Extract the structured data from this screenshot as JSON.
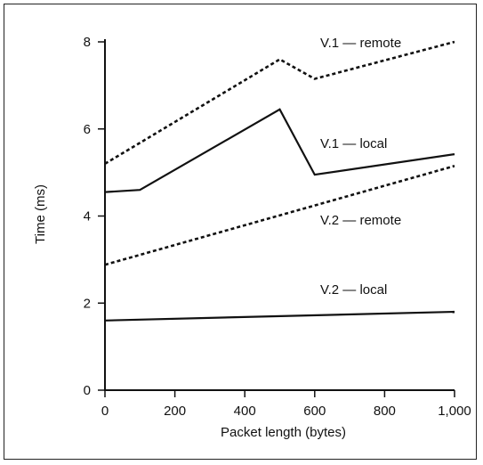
{
  "chart_data": {
    "type": "line",
    "title": "",
    "xlabel": "Packet length (bytes)",
    "ylabel": "Time (ms)",
    "xlim": [
      0,
      1000
    ],
    "ylim": [
      0,
      8
    ],
    "x_ticks": [
      0,
      200,
      400,
      600,
      800,
      1000
    ],
    "x_tick_labels": [
      "0",
      "200",
      "400",
      "600",
      "800",
      "1,000"
    ],
    "y_ticks": [
      0,
      2,
      4,
      6,
      8
    ],
    "y_tick_labels": [
      "0",
      "2",
      "4",
      "6",
      "8"
    ],
    "grid": false,
    "legend": "none",
    "series": [
      {
        "name": "V.1 — remote",
        "style": "dashed",
        "color": "#111111",
        "points": [
          [
            0,
            5.2
          ],
          [
            500,
            7.6
          ],
          [
            600,
            7.15
          ],
          [
            1000,
            8.0
          ]
        ]
      },
      {
        "name": "V.1 — local",
        "style": "solid",
        "color": "#111111",
        "points": [
          [
            0,
            4.55
          ],
          [
            100,
            4.6
          ],
          [
            500,
            6.45
          ],
          [
            600,
            4.95
          ],
          [
            1000,
            5.42
          ]
        ]
      },
      {
        "name": "V.2 — remote",
        "style": "dashed",
        "color": "#111111",
        "points": [
          [
            0,
            2.88
          ],
          [
            1000,
            5.15
          ]
        ]
      },
      {
        "name": "V.2 — local",
        "style": "solid",
        "color": "#111111",
        "points": [
          [
            0,
            1.6
          ],
          [
            1000,
            1.8
          ]
        ]
      }
    ]
  }
}
